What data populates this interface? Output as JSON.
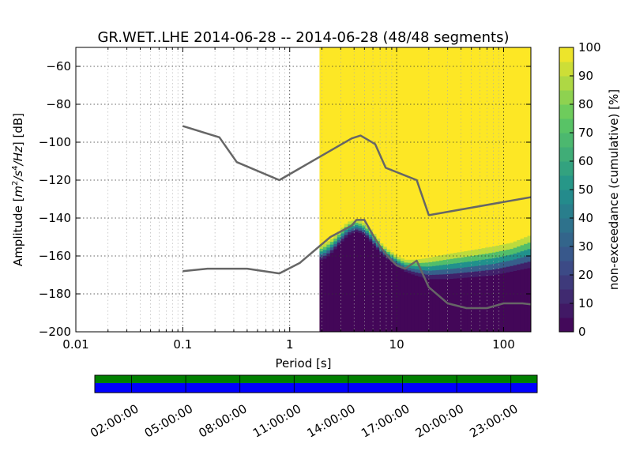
{
  "chart_data": {
    "type": "heatmap",
    "title": "GR.WET..LHE   2014-06-28 -- 2014-06-28  (48/48 segments)",
    "xlabel": "Period [s]",
    "ylabel": "Amplitude [m²/s⁴/Hz] [dB]",
    "ylabel_parts": {
      "prefix": "Amplitude ",
      "unit": "m",
      "unit_exp1": "2",
      "unit_mid": "/s",
      "unit_exp2": "4",
      "unit_end": "/Hz",
      "suffix": " [dB]"
    },
    "x_scale": "log",
    "xlim": [
      0.01,
      180
    ],
    "ylim": [
      -200,
      -50
    ],
    "x_ticks": [
      {
        "value": 0.01,
        "label": "0.01"
      },
      {
        "value": 0.1,
        "label": "0.1"
      },
      {
        "value": 1,
        "label": "1"
      },
      {
        "value": 10,
        "label": "10"
      },
      {
        "value": 100,
        "label": "100"
      }
    ],
    "y_ticks": [
      {
        "value": -60,
        "label": "−60"
      },
      {
        "value": -80,
        "label": "−80"
      },
      {
        "value": -100,
        "label": "−100"
      },
      {
        "value": -120,
        "label": "−120"
      },
      {
        "value": -140,
        "label": "−140"
      },
      {
        "value": -160,
        "label": "−160"
      },
      {
        "value": -180,
        "label": "−180"
      },
      {
        "value": -200,
        "label": "−200"
      }
    ],
    "grid": true,
    "data_start_period": 1.9,
    "colorbar": {
      "label": "non-exceedance (cumulative) [%]",
      "ticks": [
        "0",
        "10",
        "20",
        "30",
        "40",
        "50",
        "60",
        "70",
        "80",
        "90",
        "100"
      ],
      "range": [
        0,
        100
      ]
    },
    "noise_models": [
      {
        "name": "upper",
        "points": [
          [
            0.1,
            -91.5
          ],
          [
            0.22,
            -97.4
          ],
          [
            0.32,
            -110.5
          ],
          [
            0.8,
            -120
          ],
          [
            3.8,
            -98
          ],
          [
            4.6,
            -96.5
          ],
          [
            6.3,
            -101
          ],
          [
            7.9,
            -113.5
          ],
          [
            15.4,
            -120
          ],
          [
            20,
            -138.5
          ],
          [
            180,
            -129
          ]
        ]
      },
      {
        "name": "lower",
        "points": [
          [
            0.1,
            -168
          ],
          [
            0.17,
            -166.7
          ],
          [
            0.4,
            -166.7
          ],
          [
            0.8,
            -169.2
          ],
          [
            1.24,
            -163.7
          ],
          [
            2.4,
            -150
          ],
          [
            3.8,
            -144
          ],
          [
            4.2,
            -141
          ],
          [
            5,
            -141
          ],
          [
            6,
            -149
          ],
          [
            7,
            -155
          ],
          [
            8.5,
            -161
          ],
          [
            10,
            -165
          ],
          [
            12,
            -166.7
          ],
          [
            15.4,
            -162.5
          ],
          [
            20,
            -176.5
          ],
          [
            30,
            -185
          ],
          [
            45,
            -187.5
          ],
          [
            70,
            -187.5
          ],
          [
            100,
            -185
          ],
          [
            150,
            -185
          ],
          [
            180,
            -185.5
          ]
        ]
      }
    ],
    "data_zone_bounds": [
      [
        1.9,
        -162,
        -155
      ],
      [
        2.2,
        -161,
        -153
      ],
      [
        2.6,
        -157,
        -150
      ],
      [
        3.0,
        -153,
        -146
      ],
      [
        3.5,
        -149,
        -142
      ],
      [
        4.2,
        -147,
        -141
      ],
      [
        4.8,
        -148,
        -142
      ],
      [
        5.5,
        -151,
        -145
      ],
      [
        6.3,
        -155,
        -149
      ],
      [
        7.3,
        -159,
        -154
      ],
      [
        8.5,
        -162,
        -157
      ],
      [
        10,
        -165,
        -160
      ],
      [
        12,
        -168,
        -162
      ],
      [
        15,
        -170,
        -162
      ],
      [
        20,
        -172,
        -161
      ],
      [
        30,
        -172,
        -159
      ],
      [
        50,
        -171,
        -157
      ],
      [
        80,
        -170,
        -155
      ],
      [
        120,
        -168,
        -153
      ],
      [
        180,
        -166,
        -149
      ]
    ]
  },
  "time_axis": {
    "tick_labels": [
      "02:00:00",
      "05:00:00",
      "08:00:00",
      "11:00:00",
      "14:00:00",
      "17:00:00",
      "20:00:00",
      "23:00:00"
    ],
    "colors": {
      "data_available": "#008000",
      "gap": "#0000ff"
    }
  }
}
